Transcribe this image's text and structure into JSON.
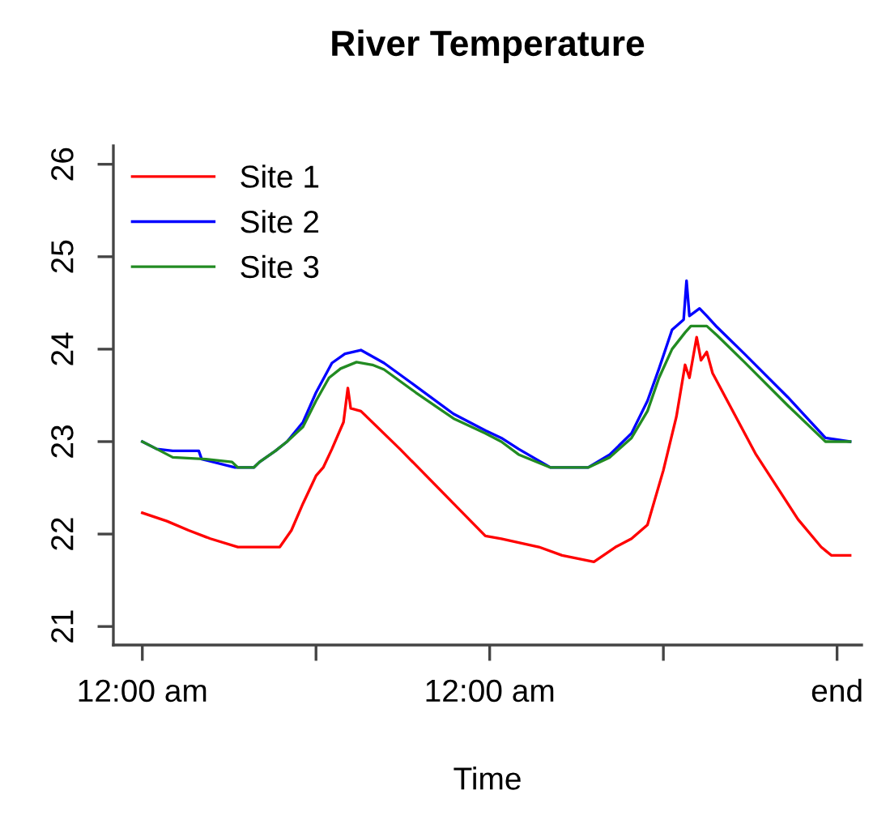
{
  "chart_data": {
    "type": "line",
    "title": "River Temperature",
    "xlabel": "Time",
    "xlim": [
      -2,
      49.7
    ],
    "ylim": [
      20.8,
      26.2
    ],
    "xticks": [
      {
        "value": 0,
        "label": "12:00 am"
      },
      {
        "value": 12,
        "label": null
      },
      {
        "value": 24,
        "label": "12:00 am"
      },
      {
        "value": 36,
        "label": null
      },
      {
        "value": 48,
        "label": "end"
      }
    ],
    "yticks": [
      21,
      22,
      23,
      24,
      25,
      26
    ],
    "grid": false,
    "legend": "top left",
    "marker": "none",
    "line_style": "solid",
    "series": [
      {
        "name": "Site 1",
        "color": "#ff0000",
        "x": [
          0,
          1.7,
          3.2,
          4.7,
          6.6,
          9.5,
          10.3,
          11.1,
          12.0,
          12.5,
          13.1,
          13.9,
          14.2,
          14.4,
          15.1,
          17.8,
          21.5,
          23.7,
          24.8,
          27.4,
          29.0,
          31.2,
          32.7,
          33.8,
          34.9,
          36.0,
          36.9,
          37.5,
          37.8,
          38.3,
          38.6,
          39.0,
          39.4,
          42.4,
          45.3,
          46.9,
          47.6,
          48.9
        ],
        "values": [
          22.23,
          22.14,
          22.04,
          21.95,
          21.86,
          21.86,
          22.04,
          22.33,
          22.63,
          22.72,
          22.92,
          23.21,
          23.58,
          23.36,
          23.33,
          22.92,
          22.33,
          21.98,
          21.95,
          21.86,
          21.77,
          21.7,
          21.86,
          21.95,
          22.1,
          22.69,
          23.27,
          23.83,
          23.69,
          24.13,
          23.88,
          23.97,
          23.74,
          22.86,
          22.16,
          21.86,
          21.77,
          21.77
        ]
      },
      {
        "name": "Site 2",
        "color": "#0000ff",
        "x": [
          0,
          1.0,
          2.1,
          3.9,
          4.1,
          6.4,
          7.7,
          8.1,
          9.2,
          10.0,
          11.1,
          12.0,
          13.1,
          14.0,
          15.1,
          15.9,
          16.7,
          18.9,
          21.5,
          23.7,
          24.8,
          26.0,
          28.2,
          30.8,
          32.3,
          33.8,
          34.9,
          35.7,
          36.6,
          37.4,
          37.6,
          37.8,
          38.5,
          39.0,
          39.7,
          41.6,
          44.6,
          47.2,
          48.9
        ],
        "values": [
          23.0,
          22.92,
          22.9,
          22.9,
          22.81,
          22.72,
          22.72,
          22.78,
          22.9,
          23.0,
          23.21,
          23.53,
          23.85,
          23.95,
          23.99,
          23.92,
          23.85,
          23.6,
          23.3,
          23.12,
          23.04,
          22.92,
          22.72,
          22.72,
          22.86,
          23.09,
          23.44,
          23.79,
          24.21,
          24.32,
          24.74,
          24.36,
          24.44,
          24.36,
          24.24,
          23.95,
          23.48,
          23.04,
          23.0
        ]
      },
      {
        "name": "Site 3",
        "color": "#228b22",
        "x": [
          0,
          1.0,
          2.1,
          4.4,
          6.2,
          6.6,
          7.7,
          8.1,
          9.2,
          10.0,
          11.1,
          12.0,
          12.9,
          13.7,
          14.8,
          15.9,
          16.7,
          18.9,
          21.5,
          23.7,
          24.8,
          26.0,
          28.2,
          30.8,
          32.3,
          33.8,
          34.9,
          35.7,
          36.6,
          37.5,
          37.9,
          39.0,
          39.7,
          41.6,
          44.6,
          47.2,
          48.9
        ],
        "values": [
          23.0,
          22.92,
          22.83,
          22.81,
          22.78,
          22.72,
          22.72,
          22.78,
          22.9,
          23.0,
          23.16,
          23.44,
          23.69,
          23.79,
          23.86,
          23.83,
          23.78,
          23.53,
          23.25,
          23.09,
          23.0,
          22.86,
          22.72,
          22.72,
          22.83,
          23.04,
          23.33,
          23.69,
          24.0,
          24.18,
          24.25,
          24.25,
          24.15,
          23.86,
          23.39,
          23.0,
          23.0
        ]
      }
    ]
  }
}
